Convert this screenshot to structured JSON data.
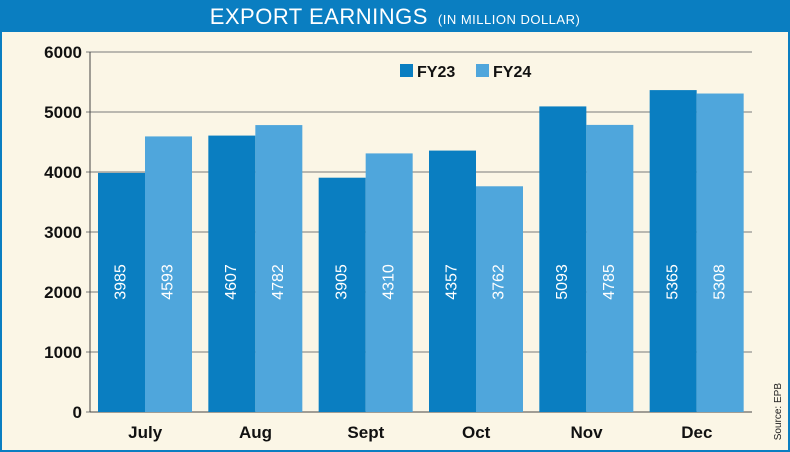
{
  "title": "EXPORT EARNINGS",
  "subtitle": "(IN MILLION DOLLAR)",
  "source": "Source: EPB",
  "colors": {
    "frame": "#0a7ec1",
    "fy23": "#0a7ec1",
    "fy24": "#4fa6dc",
    "grid": "#7a7a7a",
    "background": "#fbf6e6"
  },
  "chart_data": {
    "type": "bar",
    "title": "EXPORT EARNINGS",
    "subtitle": "(IN MILLION DOLLAR)",
    "categories": [
      "July",
      "Aug",
      "Sept",
      "Oct",
      "Nov",
      "Dec"
    ],
    "series": [
      {
        "name": "FY23",
        "values": [
          3985,
          4607,
          3905,
          4357,
          5093,
          5365
        ],
        "color": "#0a7ec1"
      },
      {
        "name": "FY24",
        "values": [
          4593,
          4782,
          4310,
          3762,
          4785,
          5308
        ],
        "color": "#4fa6dc"
      }
    ],
    "yticks": [
      0,
      1000,
      2000,
      3000,
      4000,
      5000,
      6000
    ],
    "ylim": [
      0,
      6000
    ],
    "grid": true,
    "legend": "top-right",
    "xlabel": "",
    "ylabel": ""
  }
}
